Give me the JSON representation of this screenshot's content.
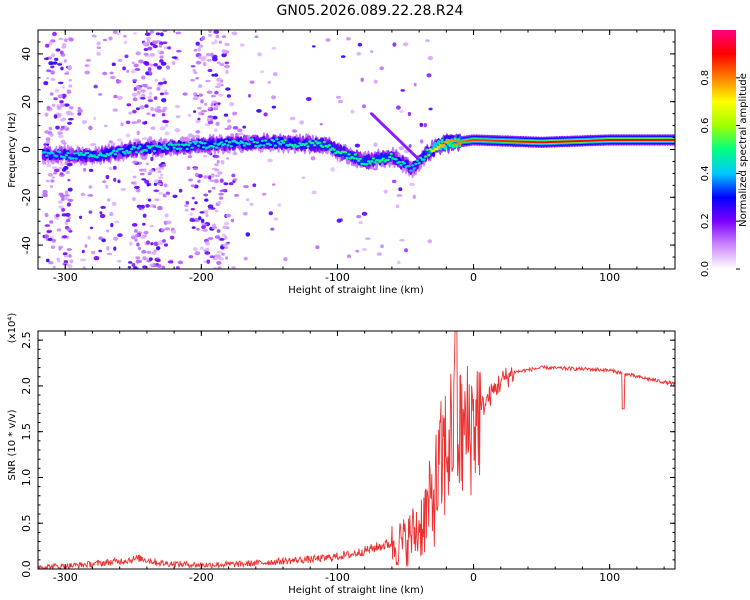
{
  "title": "GN05.2026.089.22.28.R24",
  "chart_data": [
    {
      "type": "heatmap",
      "xlabel": "Height of straight line (km)",
      "ylabel": "Frequency (Hz)",
      "xlim": [
        -320,
        148
      ],
      "ylim": [
        -50,
        50
      ],
      "xticks": [
        -300,
        -200,
        -100,
        0,
        100
      ],
      "yticks": [
        -40,
        -20,
        0,
        20,
        40
      ],
      "colorbar": {
        "label": "Normalized spectral amplitude",
        "range": [
          0.0,
          1.0
        ],
        "ticks": [
          0.0,
          0.2,
          0.4,
          0.6,
          0.8
        ],
        "colors": [
          "#ffffff",
          "#cc88ff",
          "#7a00ff",
          "#0000ff",
          "#00c8ff",
          "#00ff80",
          "#a0ff00",
          "#ffff00",
          "#ff8000",
          "#ff0000",
          "#ff0080"
        ]
      },
      "band": {
        "description_points_height_km": [
          -310,
          -280,
          -250,
          -200,
          -150,
          -110,
          -80,
          -60,
          -45,
          -35,
          -25,
          0,
          50,
          100,
          148
        ],
        "center_frequency_hz": [
          -2,
          -3,
          0,
          2,
          3,
          2,
          -5,
          -3,
          -8,
          -2,
          2,
          4,
          3,
          4,
          4
        ],
        "peak_amplitude": [
          0.4,
          0.45,
          0.45,
          0.45,
          0.45,
          0.5,
          0.5,
          0.5,
          0.4,
          0.5,
          0.75,
          0.85,
          0.9,
          0.9,
          0.9
        ]
      }
    },
    {
      "type": "line",
      "xlabel": "Height of straight line (km)",
      "ylabel": "SNR (10 * v/v)",
      "y_scale_note": "(x10⁴)",
      "xlim": [
        -320,
        148
      ],
      "ylim": [
        0,
        2.6
      ],
      "xticks": [
        -300,
        -200,
        -100,
        0,
        100
      ],
      "yticks": [
        0.0,
        0.5,
        1.0,
        1.5,
        2.0,
        2.5
      ],
      "series": [
        {
          "color": "#ee3030",
          "x": [
            -320,
            -300,
            -280,
            -260,
            -245,
            -230,
            -200,
            -170,
            -150,
            -130,
            -110,
            -90,
            -70,
            -50,
            -40,
            -30,
            -25,
            -20,
            -15,
            -10,
            -5,
            0,
            10,
            20,
            30,
            50,
            70,
            90,
            100,
            110,
            120,
            148
          ],
          "y": [
            0.01,
            0.02,
            0.04,
            0.07,
            0.1,
            0.05,
            0.03,
            0.04,
            0.06,
            0.08,
            0.1,
            0.14,
            0.22,
            0.3,
            0.45,
            0.75,
            1.05,
            1.3,
            1.55,
            1.45,
            1.5,
            1.62,
            1.85,
            2.05,
            2.15,
            2.2,
            2.19,
            2.18,
            2.17,
            2.14,
            2.1,
            2.02
          ]
        }
      ]
    }
  ]
}
